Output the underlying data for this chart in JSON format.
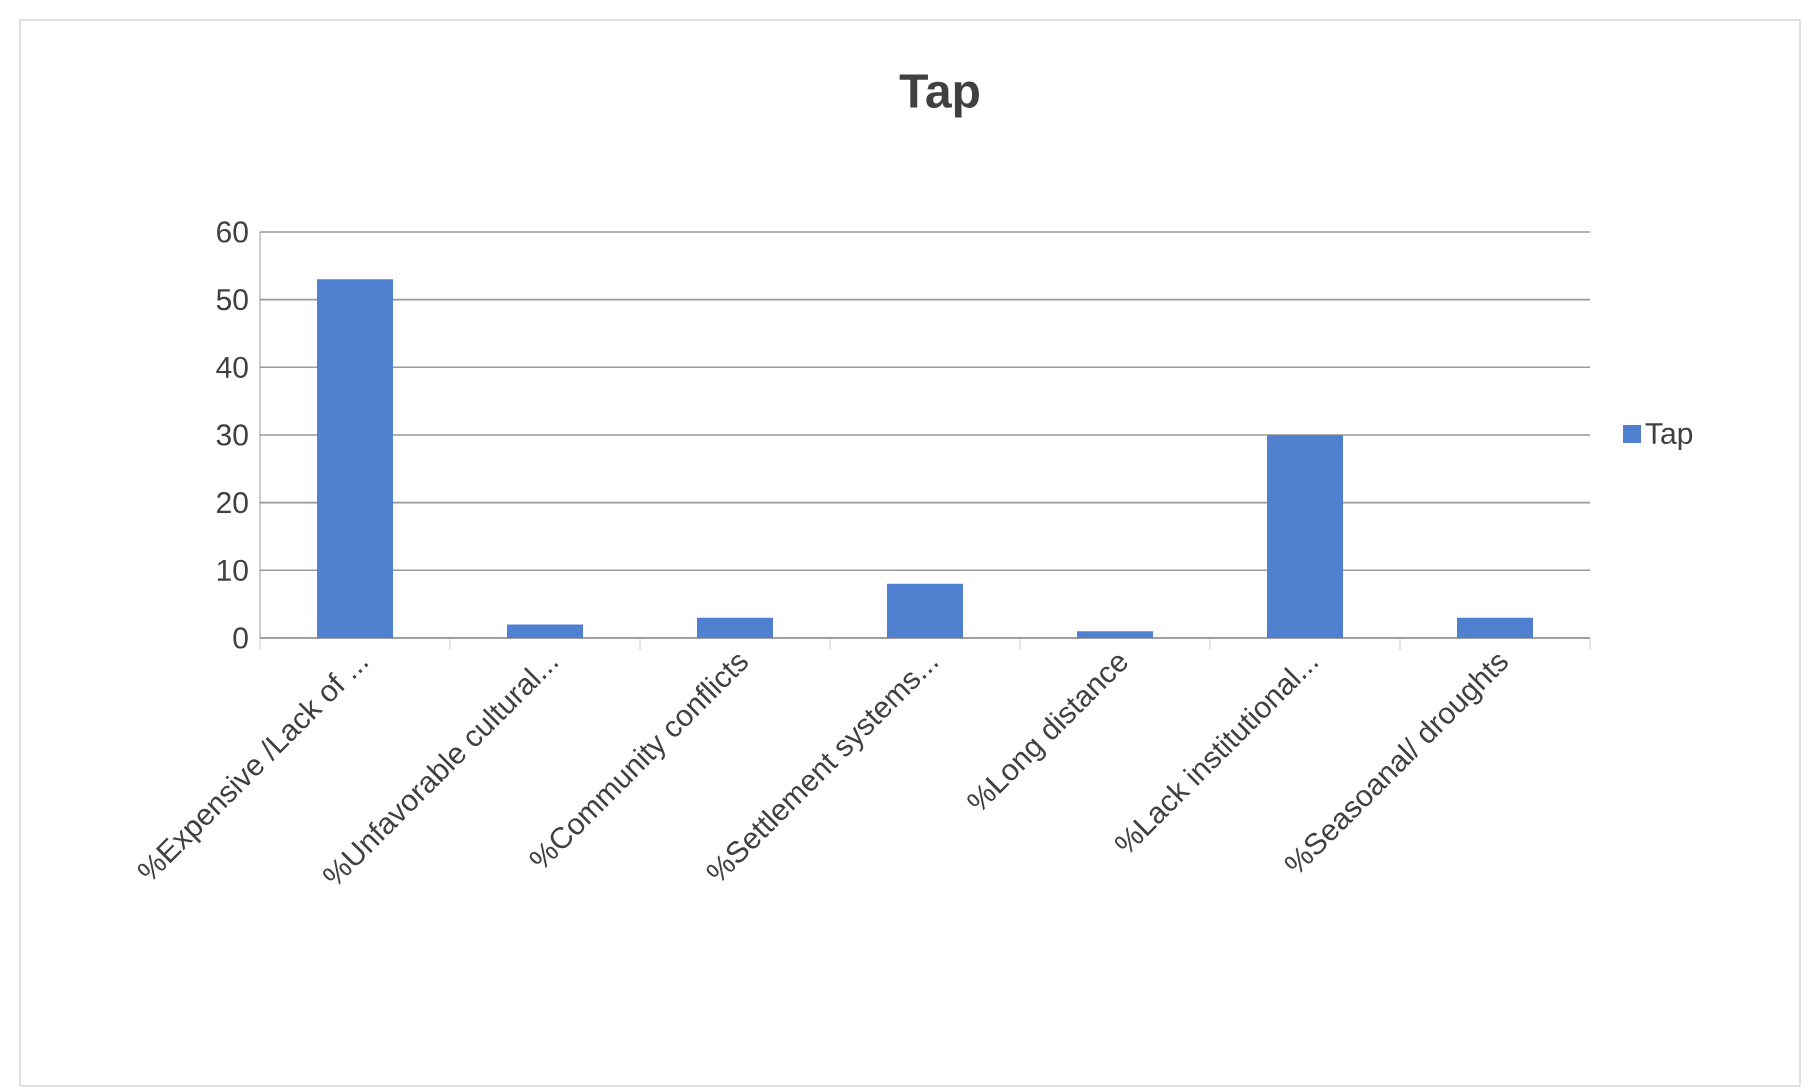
{
  "chart_data": {
    "type": "bar",
    "title": "Tap",
    "categories": [
      "%Expensive /Lack of ...",
      "%Unfavorable cultural...",
      "%Community conflicts",
      "%Settlement systems...",
      "%Long distance",
      "%Lack institutional...",
      "%Seasoanal/ droughts"
    ],
    "series": [
      {
        "name": "Tap",
        "color": "#4f81d0",
        "values": [
          53,
          2,
          3,
          8,
          1,
          30,
          3
        ]
      }
    ],
    "ylim": [
      0,
      60
    ],
    "yticks": [
      0,
      10,
      20,
      30,
      40,
      50,
      60
    ],
    "grid": "y",
    "legend": "right"
  }
}
